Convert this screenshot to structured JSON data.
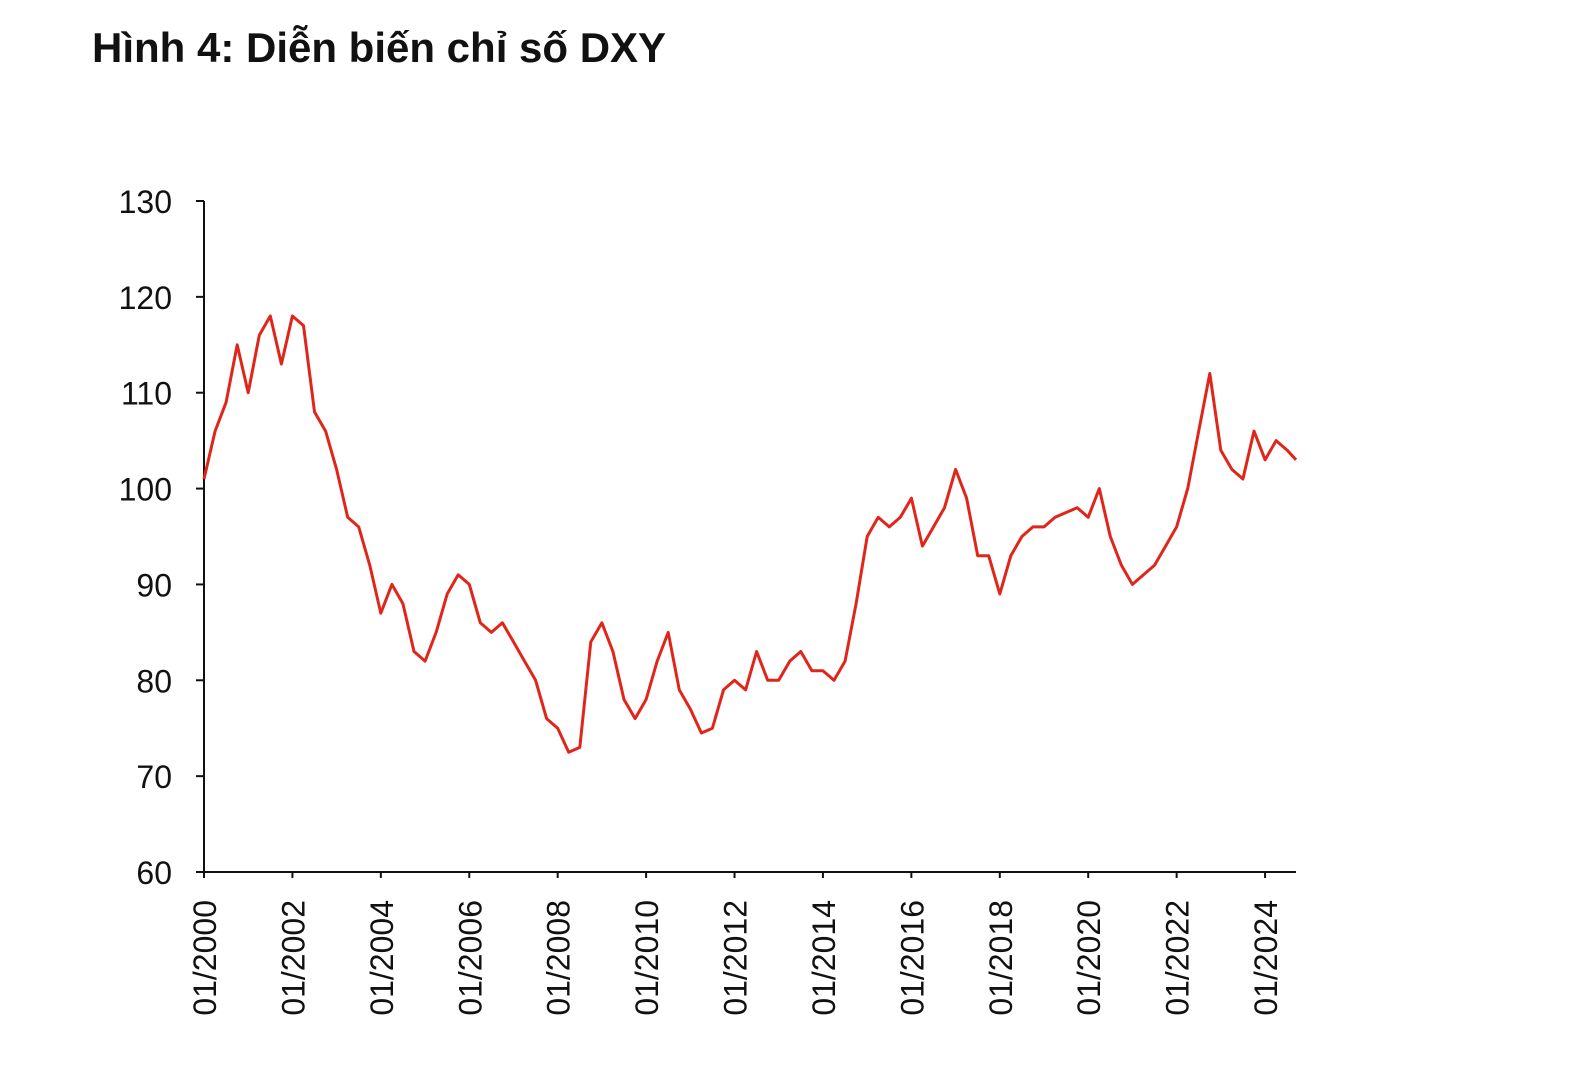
{
  "chart_data": {
    "type": "line",
    "title": "Hình 4: Diễn biến chỉ số DXY",
    "x": [
      2000.0,
      2000.25,
      2000.5,
      2000.75,
      2001.0,
      2001.25,
      2001.5,
      2001.75,
      2002.0,
      2002.25,
      2002.5,
      2002.75,
      2003.0,
      2003.25,
      2003.5,
      2003.75,
      2004.0,
      2004.25,
      2004.5,
      2004.75,
      2005.0,
      2005.25,
      2005.5,
      2005.75,
      2006.0,
      2006.25,
      2006.5,
      2006.75,
      2007.0,
      2007.25,
      2007.5,
      2007.75,
      2008.0,
      2008.25,
      2008.5,
      2008.75,
      2009.0,
      2009.25,
      2009.5,
      2009.75,
      2010.0,
      2010.25,
      2010.5,
      2010.75,
      2011.0,
      2011.25,
      2011.5,
      2011.75,
      2012.0,
      2012.25,
      2012.5,
      2012.75,
      2013.0,
      2013.25,
      2013.5,
      2013.75,
      2014.0,
      2014.25,
      2014.5,
      2014.75,
      2015.0,
      2015.25,
      2015.5,
      2015.75,
      2016.0,
      2016.25,
      2016.5,
      2016.75,
      2017.0,
      2017.25,
      2017.5,
      2017.75,
      2018.0,
      2018.25,
      2018.5,
      2018.75,
      2019.0,
      2019.25,
      2019.5,
      2019.75,
      2020.0,
      2020.25,
      2020.5,
      2020.75,
      2021.0,
      2021.25,
      2021.5,
      2021.75,
      2022.0,
      2022.25,
      2022.5,
      2022.75,
      2023.0,
      2023.25,
      2023.5,
      2023.75,
      2024.0,
      2024.25,
      2024.5,
      2024.7
    ],
    "series": [
      {
        "name": "DXY",
        "color": "#e0261b",
        "values": [
          101,
          106,
          109,
          115,
          110,
          116,
          118,
          113,
          118,
          117,
          108,
          106,
          102,
          97,
          96,
          92,
          87,
          90,
          88,
          83,
          82,
          85,
          89,
          91,
          90,
          86,
          85,
          86,
          84,
          82,
          80,
          76,
          75,
          72.5,
          73,
          84,
          86,
          83,
          78,
          76,
          78,
          82,
          85,
          79,
          77,
          74.5,
          75,
          79,
          80,
          79,
          83,
          80,
          80,
          82,
          83,
          81,
          81,
          80,
          82,
          88,
          95,
          97,
          96,
          97,
          99,
          94,
          96,
          98,
          102,
          99,
          93,
          93,
          89,
          93,
          95,
          96,
          96,
          97,
          97.5,
          98,
          97,
          100,
          95,
          92,
          90,
          91,
          92,
          94,
          96,
          100,
          106,
          112,
          104,
          102,
          101,
          106,
          103,
          105,
          104,
          103
        ]
      }
    ],
    "xlim": [
      2000,
      2024.7
    ],
    "xticks": [
      {
        "value": 2000,
        "label": "01/2000"
      },
      {
        "value": 2002,
        "label": "01/2002"
      },
      {
        "value": 2004,
        "label": "01/2004"
      },
      {
        "value": 2006,
        "label": "01/2006"
      },
      {
        "value": 2008,
        "label": "01/2008"
      },
      {
        "value": 2010,
        "label": "01/2010"
      },
      {
        "value": 2012,
        "label": "01/2012"
      },
      {
        "value": 2014,
        "label": "01/2014"
      },
      {
        "value": 2016,
        "label": "01/2016"
      },
      {
        "value": 2018,
        "label": "01/2018"
      },
      {
        "value": 2020,
        "label": "01/2020"
      },
      {
        "value": 2022,
        "label": "01/2022"
      },
      {
        "value": 2024,
        "label": "01/2024"
      }
    ],
    "ylim": [
      60,
      130
    ],
    "yticks": [
      60,
      70,
      80,
      90,
      100,
      110,
      120,
      130
    ]
  }
}
